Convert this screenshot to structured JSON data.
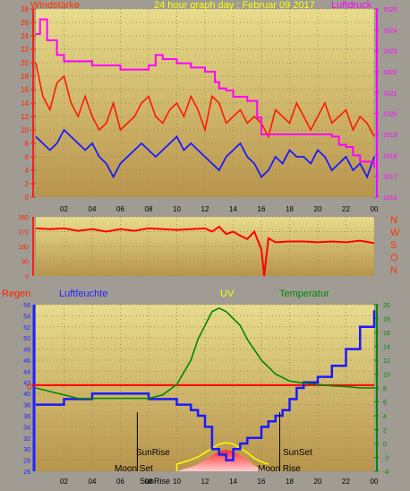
{
  "colors": {
    "wind": "#ff1a00",
    "wind_avg": "#1a1aff",
    "pressure": "#ff00ff",
    "direction": "#ff0000",
    "humidity": "#1a1aff",
    "temperature": "#008800",
    "rain": "#ff0000",
    "uv": "#ffff00",
    "title_text": "#ffff00",
    "sun_text": "#000000"
  },
  "top": {
    "title": "24 hour graph day : Februar 09 2017",
    "left_label": "Windstärke",
    "right_label": "Luftdruck"
  },
  "middle": {
    "compass": [
      "N",
      "W",
      "S",
      "O",
      "N"
    ]
  },
  "bottom": {
    "rain_label": "Regen",
    "humidity_label": "Luftfeuchte",
    "uv_label": "UV",
    "temp_label": "Temperatur",
    "sunrise": "SunRise",
    "sunset": "SunSet",
    "moonset": "Moon Set",
    "moonrise": "Moon Rise",
    "sunrise_bottom": "SunRise"
  },
  "chart_data": [
    {
      "type": "line",
      "panel": "wind_pressure",
      "x_ticks": [
        "02",
        "04",
        "06",
        "08",
        "10",
        "12",
        "14",
        "16",
        "18",
        "20",
        "22",
        "00"
      ],
      "ylim_left": [
        0,
        28
      ],
      "yticks_left": [
        0,
        2,
        4,
        6,
        8,
        10,
        12,
        14,
        16,
        18,
        20,
        22,
        24,
        26,
        28
      ],
      "ylim_right": [
        1016,
        1025
      ],
      "yticks_right": [
        1016,
        1017,
        1018,
        1019,
        1020,
        1021,
        1022,
        1023,
        1024,
        1025
      ],
      "series": [
        {
          "name": "Windstärke",
          "axis": "left",
          "x": [
            0,
            0.5,
            1,
            1.5,
            2,
            2.5,
            3,
            3.5,
            4,
            4.5,
            5,
            5.5,
            6,
            6.5,
            7,
            7.5,
            8,
            8.5,
            9,
            9.5,
            10,
            10.5,
            11,
            11.5,
            12,
            12.5,
            13,
            13.5,
            14,
            14.5,
            15,
            15.5,
            16,
            16.5,
            17,
            17.5,
            18,
            18.5,
            19,
            19.5,
            20,
            20.5,
            21,
            21.5,
            22,
            22.5,
            23,
            23.5,
            24
          ],
          "y": [
            20,
            15,
            13,
            17,
            18,
            14,
            12,
            15,
            12,
            10,
            11,
            14,
            10,
            11,
            12,
            14,
            15,
            12,
            11,
            13,
            14,
            12,
            15,
            13,
            10,
            15,
            14,
            11,
            12,
            13,
            11,
            12,
            11,
            9,
            13,
            12,
            11,
            14,
            12,
            10,
            12,
            14,
            11,
            12,
            13,
            10,
            12,
            11,
            9
          ]
        },
        {
          "name": "Wind Mittel",
          "axis": "left",
          "x": [
            0,
            0.5,
            1,
            1.5,
            2,
            2.5,
            3,
            3.5,
            4,
            4.5,
            5,
            5.5,
            6,
            6.5,
            7,
            7.5,
            8,
            8.5,
            9,
            9.5,
            10,
            10.5,
            11,
            11.5,
            12,
            12.5,
            13,
            13.5,
            14,
            14.5,
            15,
            15.5,
            16,
            16.5,
            17,
            17.5,
            18,
            18.5,
            19,
            19.5,
            20,
            20.5,
            21,
            21.5,
            22,
            22.5,
            23,
            23.5,
            24
          ],
          "y": [
            9,
            8,
            7,
            8,
            10,
            9,
            8,
            7,
            8,
            6,
            5,
            3,
            5,
            6,
            7,
            8,
            7,
            6,
            7,
            8,
            9,
            7,
            8,
            7,
            6,
            5,
            4,
            6,
            7,
            8,
            6,
            5,
            3,
            4,
            6,
            5,
            7,
            6,
            6,
            5,
            7,
            6,
            4,
            5,
            6,
            4,
            5,
            3,
            6
          ]
        },
        {
          "name": "Luftdruck",
          "axis": "right",
          "x": [
            0,
            0.3,
            0.8,
            1.5,
            2,
            3,
            4,
            5,
            6,
            7,
            8,
            8.5,
            9,
            9.5,
            10,
            11,
            12,
            12.7,
            13,
            13.5,
            14,
            15,
            15.7,
            16,
            17,
            18,
            19,
            20,
            21,
            21.5,
            22,
            22.5,
            23,
            24
          ],
          "y": [
            1023.8,
            1024.5,
            1023.5,
            1022.8,
            1022.5,
            1022.5,
            1022.3,
            1022.3,
            1022.1,
            1022.1,
            1022.3,
            1022.8,
            1022.6,
            1022.6,
            1022.4,
            1022.2,
            1022.0,
            1021.5,
            1021.2,
            1021.1,
            1020.8,
            1020.6,
            1019.8,
            1019.0,
            1019.0,
            1019.0,
            1019.0,
            1019.0,
            1018.9,
            1018.5,
            1018.4,
            1018.0,
            1017.7,
            1017.4
          ]
        }
      ]
    },
    {
      "type": "line",
      "panel": "wind_direction",
      "ylim": [
        0,
        360
      ],
      "yticks": [
        0,
        90,
        180,
        270,
        360
      ],
      "series": [
        {
          "name": "Windrichtung",
          "x": [
            0,
            1,
            2,
            3,
            4,
            5,
            6,
            7,
            8,
            9,
            10,
            11,
            12,
            12.5,
            13,
            13.5,
            14,
            14.5,
            15,
            15.5,
            16,
            16.2,
            16.5,
            17,
            18,
            19,
            20,
            21,
            22,
            23,
            24
          ],
          "y": [
            290,
            285,
            290,
            275,
            285,
            270,
            285,
            275,
            290,
            285,
            280,
            285,
            290,
            270,
            300,
            255,
            270,
            245,
            225,
            270,
            160,
            0,
            230,
            205,
            210,
            210,
            205,
            210,
            205,
            215,
            200
          ]
        }
      ]
    },
    {
      "type": "line",
      "panel": "humidity_temp_uv",
      "ylim_left": [
        26,
        56
      ],
      "yticks_left": [
        26,
        28,
        30,
        32,
        34,
        36,
        38,
        40,
        42,
        44,
        46,
        48,
        50,
        52,
        54,
        56
      ],
      "ylim_right": [
        -4,
        20
      ],
      "yticks_right": [
        -4,
        -2,
        0,
        2,
        4,
        6,
        8,
        10,
        12,
        14,
        16,
        18,
        20
      ],
      "rain_baseline_label": "0",
      "series": [
        {
          "name": "Luftfeuchte",
          "axis": "left",
          "x": [
            0,
            1,
            2,
            3,
            4,
            5,
            6,
            7,
            8,
            9,
            10,
            11,
            11.5,
            12,
            12.5,
            13,
            13.5,
            14,
            14.5,
            15,
            16,
            16.5,
            17,
            17.5,
            18,
            18.5,
            19,
            20,
            21,
            22,
            23,
            24
          ],
          "y": [
            38,
            38,
            39,
            39,
            40,
            40,
            40,
            40,
            39,
            39,
            38,
            37,
            36,
            34,
            30,
            29,
            28,
            30,
            31,
            32,
            34,
            35,
            36,
            37,
            39,
            41,
            42,
            43,
            45,
            48,
            52,
            55
          ]
        },
        {
          "name": "Temperatur",
          "axis": "right",
          "x": [
            0,
            1,
            2,
            3,
            4,
            5,
            6,
            7,
            8,
            9,
            10,
            11,
            11.5,
            12,
            12.5,
            13,
            13.5,
            14,
            14.5,
            15,
            16,
            17,
            18,
            19,
            20,
            21,
            22,
            23,
            24
          ],
          "y": [
            8,
            7.5,
            7,
            6.5,
            6.5,
            6.5,
            6.5,
            6.5,
            6.5,
            7,
            8.5,
            12,
            15,
            17,
            19,
            19.5,
            19,
            18,
            17,
            15,
            12,
            10,
            9,
            8.7,
            8.5,
            8.3,
            8.2,
            8,
            8
          ]
        },
        {
          "name": "UV",
          "axis": "uv",
          "x": [
            10,
            10.5,
            11,
            11.5,
            12,
            12.5,
            13,
            13.5,
            14,
            14.5,
            15,
            15.5,
            16,
            16.5
          ],
          "y": [
            0,
            0.3,
            0.6,
            1,
            1.6,
            2.2,
            2.8,
            3,
            2.8,
            2.2,
            1.6,
            0.8,
            0.3,
            0
          ]
        }
      ]
    }
  ]
}
